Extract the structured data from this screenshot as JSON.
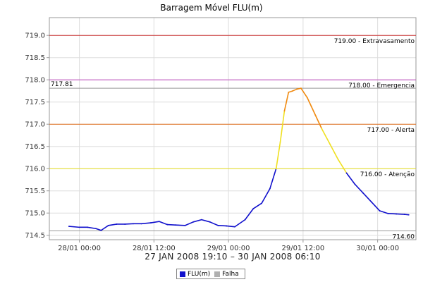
{
  "chart_data": {
    "type": "line",
    "title": "Barragem Móvel FLU(m)",
    "xlabel": "27 JAN 2008 19:10 – 30 JAN 2008 06:10",
    "ylabel": "",
    "x_range": [
      "2008-01-27T19:10",
      "2008-01-30T06:10"
    ],
    "ylim": [
      714.4,
      719.4
    ],
    "yticks": [
      714.5,
      715.0,
      715.5,
      716.0,
      716.5,
      717.0,
      717.5,
      718.0,
      718.5,
      719.0
    ],
    "ytick_labels": [
      "714.5",
      "715.0",
      "715.5",
      "716.0",
      "716.5",
      "717.0",
      "717.5",
      "718.0",
      "718.5",
      "719.0"
    ],
    "xticks": [
      "2008-01-28T00:00",
      "2008-01-28T12:00",
      "2008-01-29T00:00",
      "2008-01-29T12:00",
      "2008-01-30T00:00"
    ],
    "xtick_labels": [
      "28/01 00:00",
      "28/01 12:00",
      "29/01 00:00",
      "29/01 12:00",
      "30/01 00:00"
    ],
    "grid": true,
    "legend_position": "bottom",
    "reference_lines": [
      {
        "value": 719.0,
        "label": "719.00 - Extravasamento",
        "color": "#cc3333",
        "label_side": "right"
      },
      {
        "value": 718.0,
        "label": "718.00 - Emergencia",
        "color": "#bb44bb",
        "label_side": "right"
      },
      {
        "value": 717.81,
        "label": "717.81",
        "color": "#999999",
        "label_side": "left"
      },
      {
        "value": 717.0,
        "label": "717.00 - Alerta",
        "color": "#e07020",
        "label_side": "right"
      },
      {
        "value": 716.0,
        "label": "716.00 - Atenção",
        "color": "#e8e020",
        "label_side": "right"
      },
      {
        "value": 714.6,
        "label": "714.60",
        "color": "#999999",
        "label_side": "right"
      }
    ],
    "series": [
      {
        "name": "FLU(m)",
        "color": "#1010cc",
        "x": [
          "2008-01-27T22:20",
          "2008-01-28T00:00",
          "2008-01-28T01:20",
          "2008-01-28T02:40",
          "2008-01-28T03:30",
          "2008-01-28T04:40",
          "2008-01-28T06:00",
          "2008-01-28T07:20",
          "2008-01-28T08:40",
          "2008-01-28T10:00",
          "2008-01-28T11:30",
          "2008-01-28T12:50",
          "2008-01-28T14:10",
          "2008-01-28T15:30",
          "2008-01-28T17:00",
          "2008-01-28T18:20",
          "2008-01-28T19:40",
          "2008-01-28T21:00",
          "2008-01-28T22:20",
          "2008-01-28T23:40",
          "2008-01-29T01:00",
          "2008-01-29T02:40",
          "2008-01-29T04:00",
          "2008-01-29T05:20",
          "2008-01-29T06:40",
          "2008-01-29T07:40",
          "2008-01-29T08:20",
          "2008-01-29T09:00",
          "2008-01-29T09:40",
          "2008-01-29T10:20",
          "2008-01-29T11:00",
          "2008-01-29T11:40",
          "2008-01-29T12:40",
          "2008-01-29T13:20",
          "2008-01-29T14:00",
          "2008-01-29T15:00",
          "2008-01-29T16:20",
          "2008-01-29T17:40",
          "2008-01-29T19:00",
          "2008-01-29T20:20",
          "2008-01-29T21:40",
          "2008-01-29T23:00",
          "2008-01-30T00:20",
          "2008-01-30T01:40",
          "2008-01-30T03:00",
          "2008-01-30T04:20",
          "2008-01-30T05:00"
        ],
        "y": [
          714.7,
          714.68,
          714.68,
          714.65,
          714.61,
          714.72,
          714.75,
          714.75,
          714.76,
          714.76,
          714.78,
          714.81,
          714.74,
          714.73,
          714.72,
          714.8,
          714.85,
          714.8,
          714.72,
          714.71,
          714.69,
          714.85,
          715.1,
          715.22,
          715.55,
          716.0,
          716.6,
          717.3,
          717.72,
          717.75,
          717.79,
          717.81,
          717.6,
          717.4,
          717.2,
          716.9,
          716.55,
          716.2,
          715.9,
          715.65,
          715.45,
          715.25,
          715.05,
          714.99,
          714.98,
          714.97,
          714.96
        ]
      },
      {
        "name": "Falha",
        "color": "#b0b0b0",
        "x": [],
        "y": []
      }
    ],
    "segment_colors": [
      {
        "below": 716.0,
        "color": "#1010cc"
      },
      {
        "below": 717.0,
        "color": "#f0e020"
      },
      {
        "below": 718.0,
        "color": "#f08a10"
      }
    ]
  }
}
